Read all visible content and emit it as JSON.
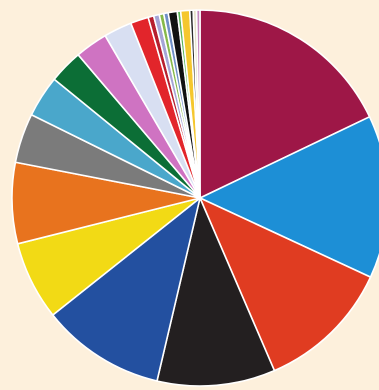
{
  "chart_data": {
    "type": "pie",
    "start_angle_deg": 0,
    "direction": "clockwise",
    "slices": [
      {
        "value": 18.5,
        "color": "#9e1747"
      },
      {
        "value": 14.5,
        "color": "#1d8fd6"
      },
      {
        "value": 12.0,
        "color": "#e03c21"
      },
      {
        "value": 10.5,
        "color": "#231f20"
      },
      {
        "value": 11.0,
        "color": "#2350a0"
      },
      {
        "value": 7.0,
        "color": "#f2da15"
      },
      {
        "value": 7.2,
        "color": "#e8731e"
      },
      {
        "value": 4.4,
        "color": "#7b7b7b"
      },
      {
        "value": 3.7,
        "color": "#4aa7cb"
      },
      {
        "value": 3.0,
        "color": "#0c6e36"
      },
      {
        "value": 2.9,
        "color": "#cf73c2"
      },
      {
        "value": 2.5,
        "color": "#d8dff2"
      },
      {
        "value": 1.6,
        "color": "#e2252b"
      },
      {
        "value": 0.5,
        "color": "#b71f2e"
      },
      {
        "value": 0.5,
        "color": "#a5a5d6"
      },
      {
        "value": 0.4,
        "color": "#86b94a"
      },
      {
        "value": 0.4,
        "color": "#6f8fc7"
      },
      {
        "value": 0.8,
        "color": "#111111"
      },
      {
        "value": 0.3,
        "color": "#5bb55a"
      },
      {
        "value": 0.8,
        "color": "#f5c72e"
      },
      {
        "value": 0.3,
        "color": "#2b2b2b"
      },
      {
        "value": 0.3,
        "color": "#e5e0c8"
      },
      {
        "value": 0.3,
        "color": "#c58bc0"
      }
    ]
  }
}
